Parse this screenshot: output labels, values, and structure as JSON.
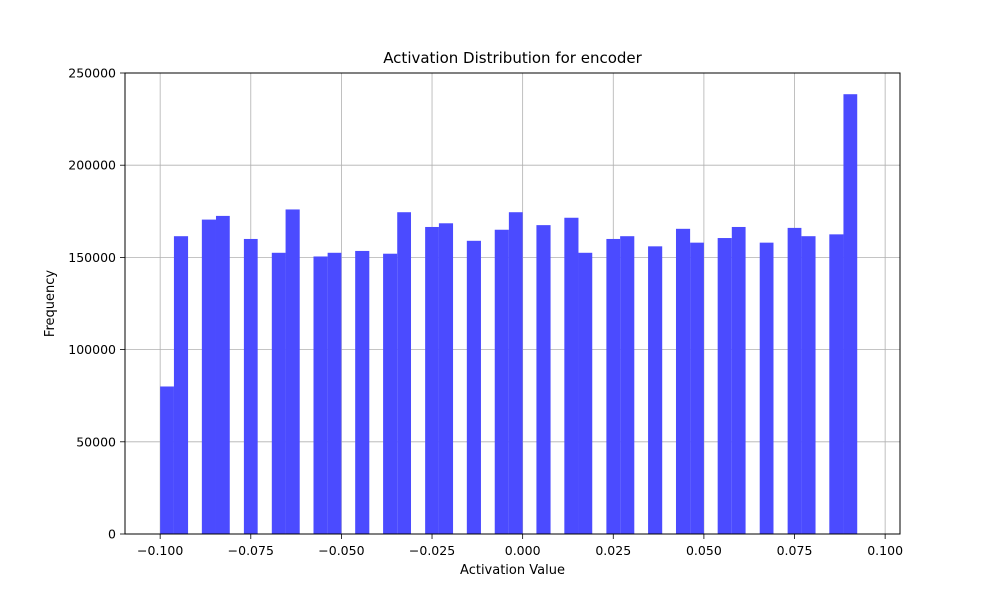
{
  "chart_data": {
    "type": "bar",
    "title": "Activation Distribution for encoder",
    "xlabel": "Activation Value",
    "ylabel": "Frequency",
    "xlim": [
      -0.1097,
      0.1041
    ],
    "ylim": [
      0,
      250000
    ],
    "xticks": [
      -0.1,
      -0.075,
      -0.05,
      -0.025,
      0.0,
      0.025,
      0.05,
      0.075,
      0.1
    ],
    "xtick_labels": [
      "−0.100",
      "−0.075",
      "−0.050",
      "−0.025",
      "0.000",
      "0.025",
      "0.050",
      "0.075",
      "0.100"
    ],
    "yticks": [
      0,
      50000,
      100000,
      150000,
      200000,
      250000
    ],
    "ytick_labels": [
      "0",
      "50000",
      "100000",
      "150000",
      "200000",
      "250000"
    ],
    "grid": true,
    "bar_color": "#4b4bff",
    "bins": [
      {
        "x0": -0.1,
        "x1": -0.0962,
        "value": 80000
      },
      {
        "x0": -0.0962,
        "x1": -0.0923,
        "value": 161500
      },
      {
        "x0": -0.0885,
        "x1": -0.0846,
        "value": 170500
      },
      {
        "x0": -0.0846,
        "x1": -0.0808,
        "value": 172500
      },
      {
        "x0": -0.0769,
        "x1": -0.0731,
        "value": 160000
      },
      {
        "x0": -0.0692,
        "x1": -0.0654,
        "value": 152500
      },
      {
        "x0": -0.0654,
        "x1": -0.0615,
        "value": 176000
      },
      {
        "x0": -0.0577,
        "x1": -0.0538,
        "value": 150500
      },
      {
        "x0": -0.0538,
        "x1": -0.05,
        "value": 152500
      },
      {
        "x0": -0.0462,
        "x1": -0.0423,
        "value": 153500
      },
      {
        "x0": -0.0385,
        "x1": -0.0346,
        "value": 152000
      },
      {
        "x0": -0.0346,
        "x1": -0.0308,
        "value": 174500
      },
      {
        "x0": -0.0269,
        "x1": -0.0231,
        "value": 166500
      },
      {
        "x0": -0.0231,
        "x1": -0.0192,
        "value": 168500
      },
      {
        "x0": -0.0154,
        "x1": -0.0115,
        "value": 159000
      },
      {
        "x0": -0.0077,
        "x1": -0.0038,
        "value": 165000
      },
      {
        "x0": -0.0038,
        "x1": 0.0,
        "value": 174500
      },
      {
        "x0": 0.0038,
        "x1": 0.0077,
        "value": 167500
      },
      {
        "x0": 0.0115,
        "x1": 0.0154,
        "value": 171500
      },
      {
        "x0": 0.0154,
        "x1": 0.0192,
        "value": 152500
      },
      {
        "x0": 0.0231,
        "x1": 0.0269,
        "value": 160000
      },
      {
        "x0": 0.0269,
        "x1": 0.0308,
        "value": 161500
      },
      {
        "x0": 0.0346,
        "x1": 0.0385,
        "value": 156000
      },
      {
        "x0": 0.0423,
        "x1": 0.0462,
        "value": 165500
      },
      {
        "x0": 0.0462,
        "x1": 0.05,
        "value": 158000
      },
      {
        "x0": 0.0538,
        "x1": 0.0577,
        "value": 160500
      },
      {
        "x0": 0.0577,
        "x1": 0.0615,
        "value": 166500
      },
      {
        "x0": 0.0654,
        "x1": 0.0692,
        "value": 158000
      },
      {
        "x0": 0.0731,
        "x1": 0.0769,
        "value": 166000
      },
      {
        "x0": 0.0769,
        "x1": 0.0808,
        "value": 161500
      },
      {
        "x0": 0.0846,
        "x1": 0.0885,
        "value": 162500
      },
      {
        "x0": 0.0885,
        "x1": 0.0923,
        "value": 238500
      }
    ]
  }
}
